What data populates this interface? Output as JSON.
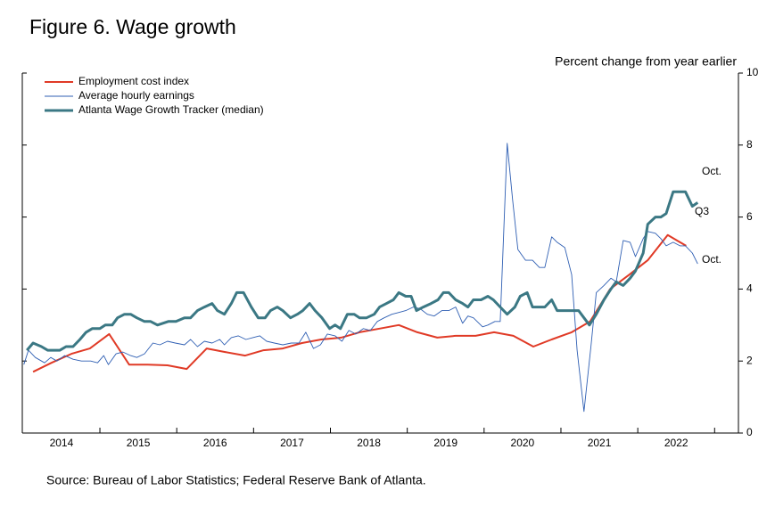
{
  "chart_data": {
    "type": "line",
    "title": "Figure 6. Wage growth",
    "y_axis_label": "Percent change from year earlier",
    "source": "Source: Bureau of Labor Statistics; Federal Reserve Bank of Atlanta.",
    "xlim": [
      2013.99,
      2023.31
    ],
    "xticks": [
      {
        "value": 2014.5,
        "label": "2014"
      },
      {
        "value": 2015.5,
        "label": "2015"
      },
      {
        "value": 2016.5,
        "label": "2016"
      },
      {
        "value": 2017.5,
        "label": "2017"
      },
      {
        "value": 2018.5,
        "label": "2018"
      },
      {
        "value": 2019.5,
        "label": "2019"
      },
      {
        "value": 2020.5,
        "label": "2020"
      },
      {
        "value": 2021.5,
        "label": "2021"
      },
      {
        "value": 2022.5,
        "label": "2022"
      }
    ],
    "xminorticks": [
      2015,
      2016,
      2017,
      2018,
      2019,
      2020,
      2021,
      2022,
      2023
    ],
    "ylim": [
      0,
      10
    ],
    "yticks": [
      0,
      2,
      4,
      6,
      8,
      10
    ],
    "legend": "upper left",
    "series": [
      {
        "name": "Employment cost index",
        "color": "#e03a26",
        "width": 2,
        "x": [
          2014.13,
          2014.37,
          2014.63,
          2014.87,
          2015.12,
          2015.38,
          2015.62,
          2015.88,
          2016.13,
          2016.39,
          2016.63,
          2016.89,
          2017.13,
          2017.38,
          2017.63,
          2017.88,
          2018.14,
          2018.38,
          2018.64,
          2018.89,
          2019.13,
          2019.39,
          2019.63,
          2019.89,
          2020.13,
          2020.38,
          2020.64,
          2020.88,
          2021.14,
          2021.38,
          2021.64,
          2021.89,
          2022.13,
          2022.39,
          2022.63
        ],
        "values": [
          1.7,
          1.95,
          2.2,
          2.35,
          2.75,
          1.9,
          1.9,
          1.88,
          1.78,
          2.35,
          2.25,
          2.15,
          2.3,
          2.35,
          2.5,
          2.6,
          2.65,
          2.8,
          2.9,
          3.0,
          2.8,
          2.65,
          2.7,
          2.7,
          2.8,
          2.7,
          2.4,
          2.6,
          2.8,
          3.1,
          4.0,
          4.4,
          4.8,
          5.5,
          5.2
        ]
      },
      {
        "name": "Average hourly earnings",
        "color": "#2f5fb3",
        "width": 0.9,
        "x": [
          2014.01,
          2014.07,
          2014.16,
          2014.28,
          2014.36,
          2014.44,
          2014.54,
          2014.65,
          2014.76,
          2014.88,
          2014.97,
          2015.05,
          2015.11,
          2015.21,
          2015.3,
          2015.4,
          2015.48,
          2015.58,
          2015.69,
          2015.78,
          2015.88,
          2015.98,
          2016.1,
          2016.18,
          2016.27,
          2016.36,
          2016.46,
          2016.56,
          2016.62,
          2016.71,
          2016.8,
          2016.9,
          2016.99,
          2017.08,
          2017.17,
          2017.27,
          2017.38,
          2017.49,
          2017.59,
          2017.68,
          2017.78,
          2017.87,
          2017.96,
          2018.06,
          2018.15,
          2018.24,
          2018.33,
          2018.43,
          2018.52,
          2018.61,
          2018.7,
          2018.8,
          2018.89,
          2018.98,
          2019.08,
          2019.17,
          2019.26,
          2019.35,
          2019.45,
          2019.54,
          2019.63,
          2019.72,
          2019.79,
          2019.86,
          2019.98,
          2020.05,
          2020.14,
          2020.21,
          2020.3,
          2020.37,
          2020.44,
          2020.54,
          2020.63,
          2020.72,
          2020.79,
          2020.88,
          2020.95,
          2021.05,
          2021.14,
          2021.21,
          2021.3,
          2021.39,
          2021.46,
          2021.56,
          2021.65,
          2021.72,
          2021.81,
          2021.9,
          2021.97,
          2022.07,
          2022.13,
          2022.23,
          2022.3,
          2022.37,
          2022.46,
          2022.55,
          2022.62,
          2022.71,
          2022.78
        ],
        "values": [
          1.9,
          2.3,
          2.1,
          1.95,
          2.1,
          2.0,
          2.15,
          2.05,
          2.0,
          2.0,
          1.95,
          2.15,
          1.9,
          2.2,
          2.25,
          2.15,
          2.1,
          2.2,
          2.5,
          2.45,
          2.55,
          2.5,
          2.45,
          2.6,
          2.4,
          2.55,
          2.5,
          2.6,
          2.45,
          2.65,
          2.7,
          2.6,
          2.65,
          2.7,
          2.55,
          2.5,
          2.45,
          2.5,
          2.5,
          2.8,
          2.35,
          2.45,
          2.75,
          2.7,
          2.55,
          2.85,
          2.75,
          2.9,
          2.85,
          3.1,
          3.2,
          3.3,
          3.35,
          3.4,
          3.5,
          3.45,
          3.3,
          3.25,
          3.4,
          3.4,
          3.5,
          3.05,
          3.25,
          3.2,
          2.95,
          3.0,
          3.1,
          3.1,
          8.05,
          6.5,
          5.1,
          4.8,
          4.8,
          4.6,
          4.6,
          5.45,
          5.3,
          5.15,
          4.4,
          2.3,
          0.6,
          2.4,
          3.9,
          4.1,
          4.3,
          4.2,
          5.35,
          5.3,
          4.9,
          5.4,
          5.6,
          5.55,
          5.4,
          5.2,
          5.3,
          5.2,
          5.2,
          5.0,
          4.7
        ]
      },
      {
        "name": "Atlanta Wage Growth Tracker (median)",
        "color": "#3b7884",
        "width": 3,
        "x": [
          2014.05,
          2014.13,
          2014.24,
          2014.32,
          2014.48,
          2014.56,
          2014.65,
          2014.74,
          2014.82,
          2014.9,
          2015.0,
          2015.07,
          2015.16,
          2015.23,
          2015.32,
          2015.4,
          2015.48,
          2015.58,
          2015.66,
          2015.75,
          2015.89,
          2015.99,
          2016.1,
          2016.18,
          2016.27,
          2016.36,
          2016.46,
          2016.53,
          2016.62,
          2016.71,
          2016.78,
          2016.87,
          2016.97,
          2017.06,
          2017.15,
          2017.22,
          2017.31,
          2017.38,
          2017.48,
          2017.57,
          2017.64,
          2017.73,
          2017.8,
          2017.89,
          2017.99,
          2018.06,
          2018.13,
          2018.22,
          2018.31,
          2018.38,
          2018.47,
          2018.57,
          2018.64,
          2018.73,
          2018.82,
          2018.89,
          2018.98,
          2019.05,
          2019.12,
          2019.21,
          2019.31,
          2019.4,
          2019.47,
          2019.54,
          2019.63,
          2019.72,
          2019.79,
          2019.86,
          2019.96,
          2020.05,
          2020.12,
          2020.21,
          2020.3,
          2020.4,
          2020.47,
          2020.56,
          2020.63,
          2020.72,
          2020.79,
          2020.88,
          2020.95,
          2021.05,
          2021.14,
          2021.23,
          2021.3,
          2021.37,
          2021.46,
          2021.56,
          2021.65,
          2021.72,
          2021.81,
          2021.9,
          2021.97,
          2022.07,
          2022.13,
          2022.23,
          2022.3,
          2022.37,
          2022.46,
          2022.55,
          2022.62,
          2022.71,
          2022.78
        ],
        "values": [
          2.3,
          2.5,
          2.4,
          2.3,
          2.3,
          2.4,
          2.4,
          2.6,
          2.8,
          2.9,
          2.9,
          3.0,
          3.0,
          3.2,
          3.3,
          3.3,
          3.2,
          3.1,
          3.1,
          3.0,
          3.1,
          3.1,
          3.2,
          3.2,
          3.4,
          3.5,
          3.6,
          3.4,
          3.3,
          3.6,
          3.9,
          3.9,
          3.5,
          3.2,
          3.2,
          3.4,
          3.5,
          3.4,
          3.2,
          3.3,
          3.4,
          3.6,
          3.4,
          3.2,
          2.9,
          3.0,
          2.9,
          3.3,
          3.3,
          3.2,
          3.2,
          3.3,
          3.5,
          3.6,
          3.7,
          3.9,
          3.8,
          3.8,
          3.4,
          3.5,
          3.6,
          3.7,
          3.9,
          3.9,
          3.7,
          3.6,
          3.5,
          3.7,
          3.7,
          3.8,
          3.7,
          3.5,
          3.3,
          3.5,
          3.8,
          3.9,
          3.5,
          3.5,
          3.5,
          3.7,
          3.4,
          3.4,
          3.4,
          3.4,
          3.2,
          3.0,
          3.3,
          3.7,
          4.0,
          4.2,
          4.1,
          4.3,
          4.5,
          5.0,
          5.8,
          6.0,
          6.0,
          6.1,
          6.7,
          6.7,
          6.7,
          6.3,
          6.4
        ]
      }
    ],
    "annotations": [
      {
        "text": "Oct.",
        "color": "#4a7fa6"
      },
      {
        "text": "Q3",
        "color": "#e03a26"
      },
      {
        "text": "Oct.",
        "color": "#2d5c9e"
      }
    ]
  }
}
